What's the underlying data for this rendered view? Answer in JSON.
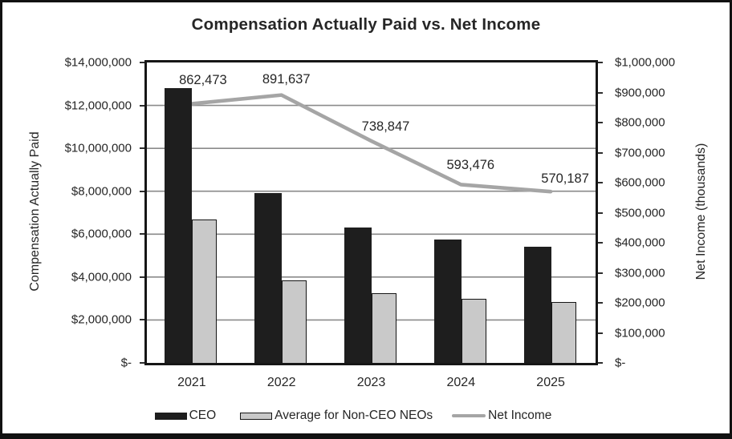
{
  "title": "Compensation Actually Paid vs. Net Income",
  "chart_data": {
    "type": "bar",
    "subtype": "combo-bar-line-dual-axis",
    "categories": [
      "2021",
      "2022",
      "2023",
      "2024",
      "2025"
    ],
    "series": [
      {
        "name": "CEO",
        "type": "bar",
        "axis": "left",
        "color": "#1e1e1e",
        "values": [
          12800000,
          7900000,
          6300000,
          5750000,
          5425000
        ]
      },
      {
        "name": "Average for Non-CEO NEOs",
        "type": "bar",
        "axis": "left",
        "color": "#c9c9c9",
        "border_color": "#161616",
        "values": [
          6700000,
          3850000,
          3250000,
          3000000,
          2850000
        ]
      },
      {
        "name": "Net Income",
        "type": "line",
        "axis": "right",
        "color": "#a5a5a5",
        "values": [
          862473,
          891637,
          738847,
          593476,
          570187
        ],
        "data_labels": [
          "862,473",
          "891,637",
          "738,847",
          "593,476",
          "570,187"
        ]
      }
    ],
    "left_axis": {
      "title": "Compensation Actually Paid",
      "min": 0,
      "max": 14000000,
      "tick_labels": [
        "$14,000,000",
        "$12,000,000",
        "$10,000,000",
        "$8,000,000",
        "$6,000,000",
        "$4,000,000",
        "$2,000,000",
        "$-"
      ]
    },
    "right_axis": {
      "title": "Net Income (thousands)",
      "min": 0,
      "max": 1000000,
      "tick_labels": [
        "$1,000,000",
        "$900,000",
        "$800,000",
        "$700,000",
        "$600,000",
        "$500,000",
        "$400,000",
        "$300,000",
        "$200,000",
        "$100,000",
        "$-"
      ]
    },
    "grid": true,
    "gridline_color": "#8a8a8a",
    "legend_position": "bottom"
  }
}
